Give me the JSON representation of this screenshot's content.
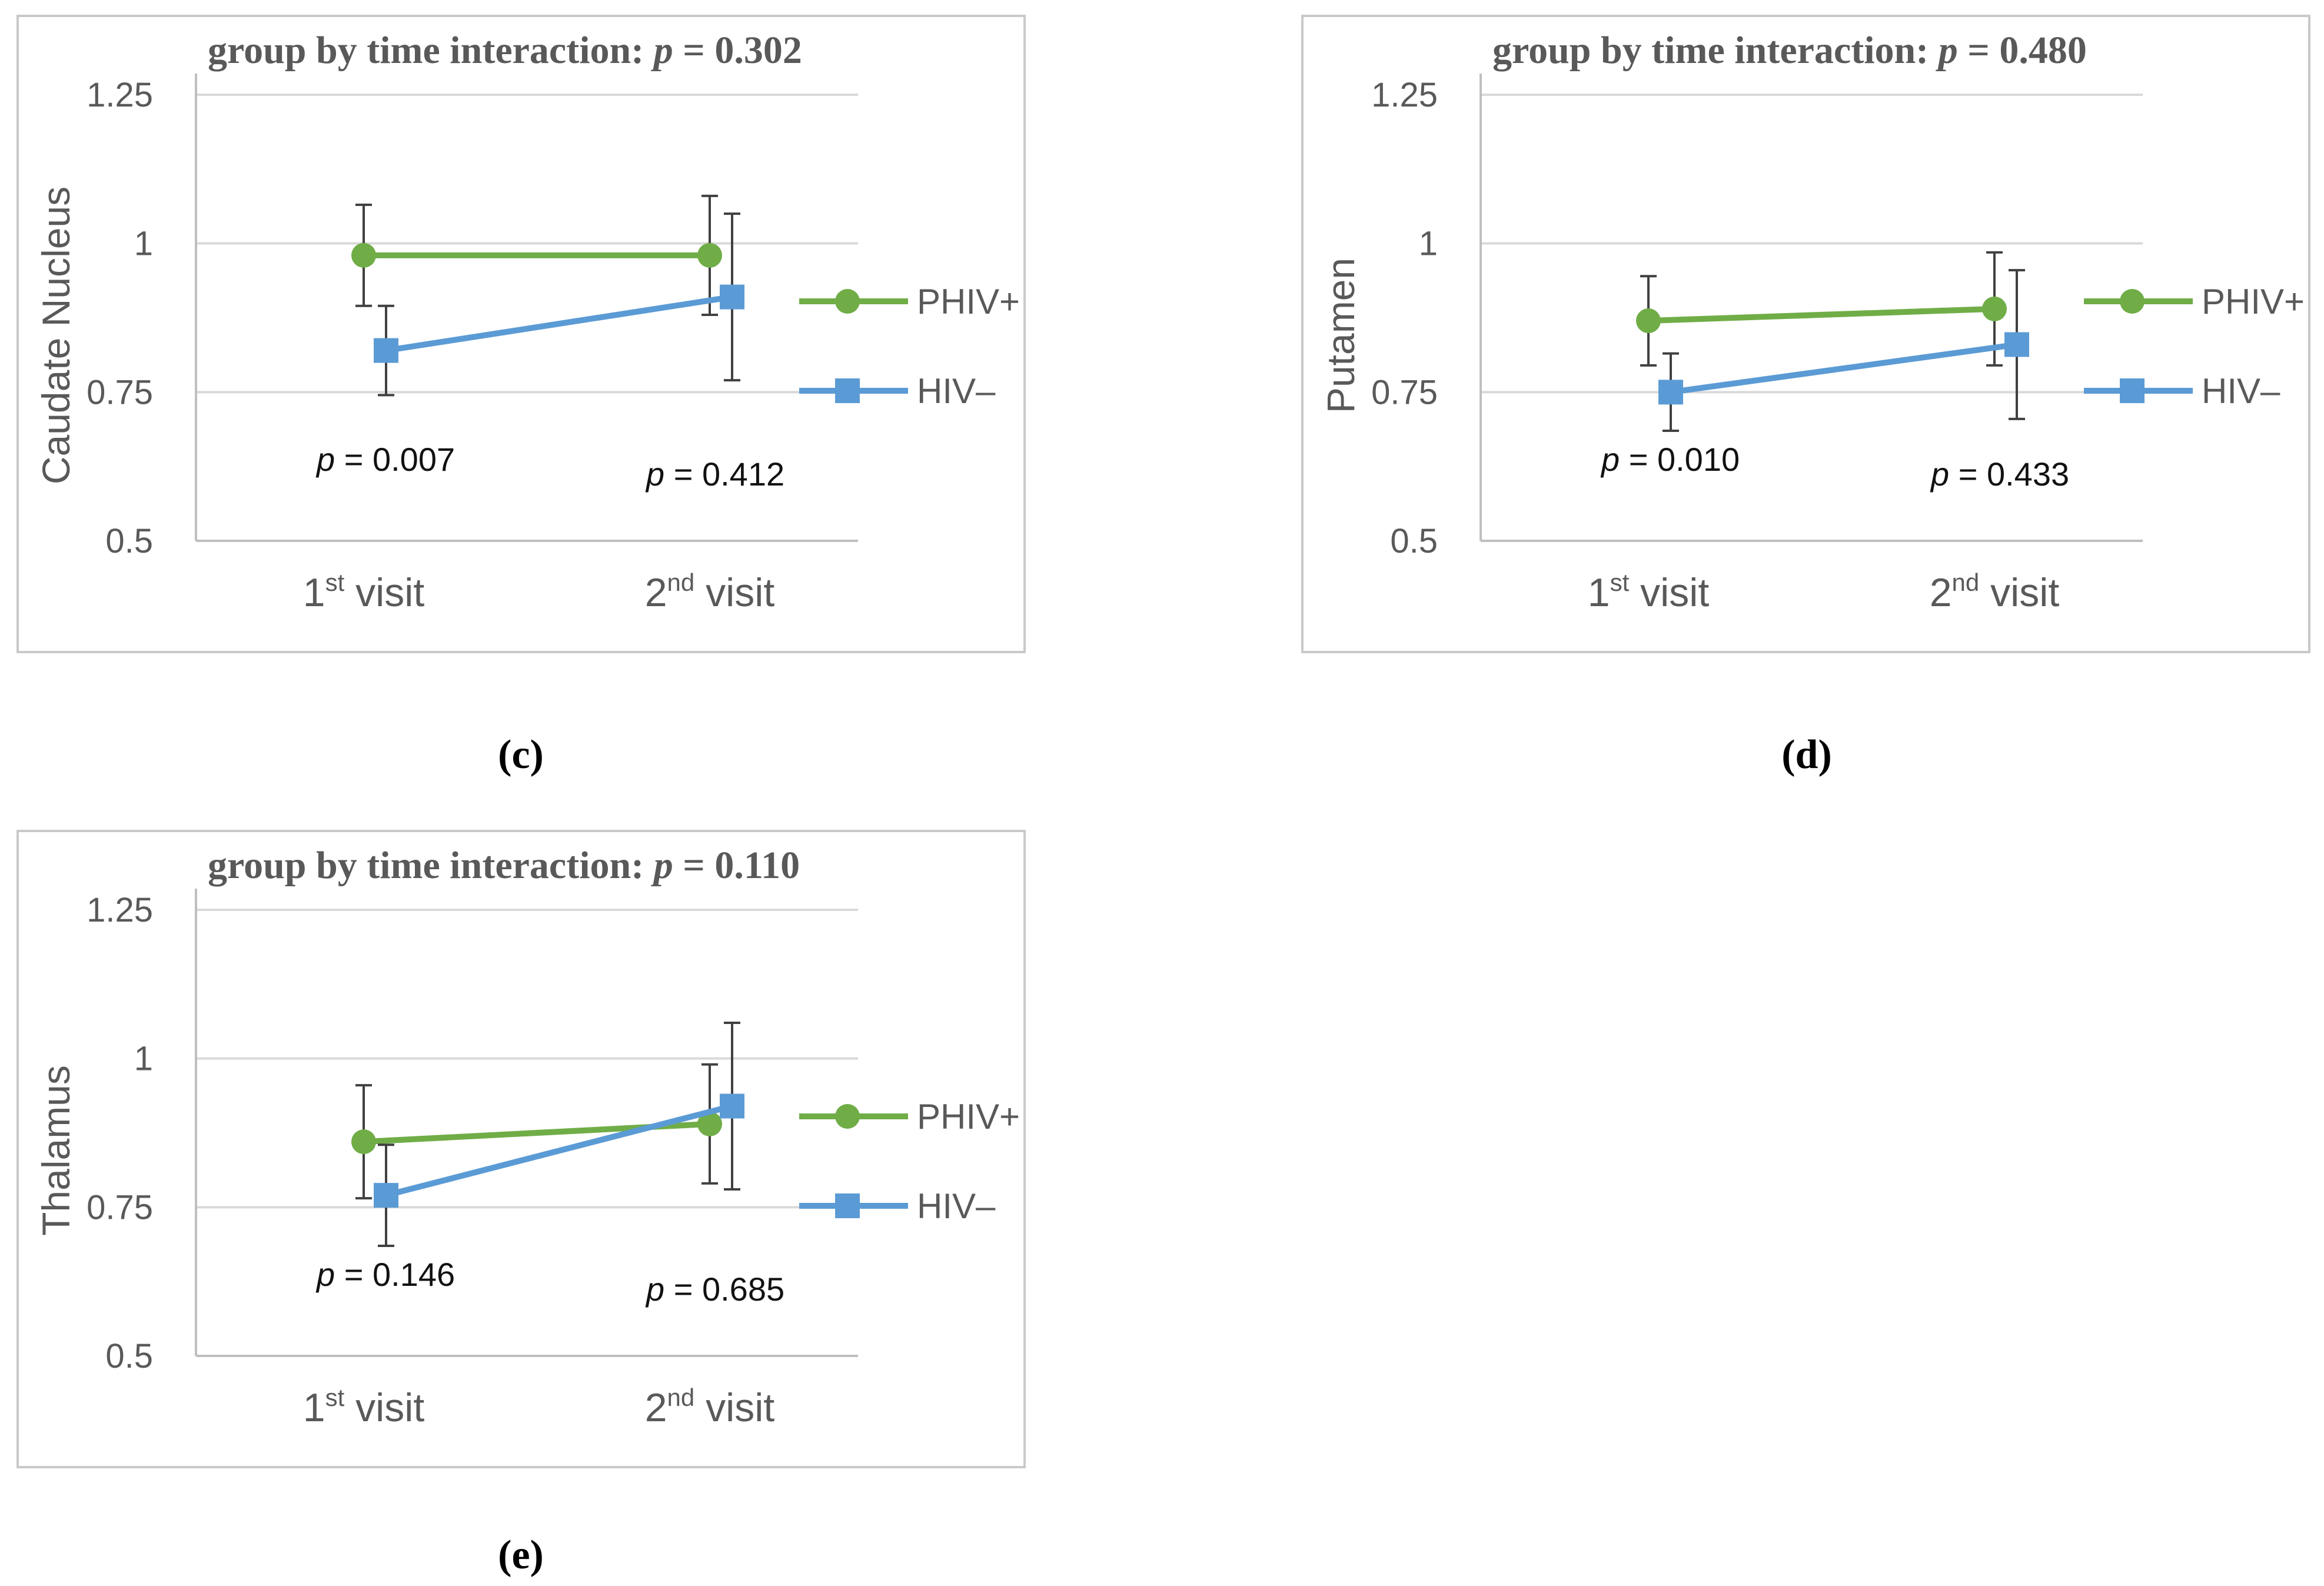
{
  "chart_data": [
    {
      "type": "line",
      "caption": "(c)",
      "title_prefix": "group by time interaction: ",
      "title_p_symbol": "p",
      "title_p_value": " = 0.302",
      "ylabel": "Caudate Nucleus",
      "ylim": [
        0.5,
        1.25
      ],
      "yticks": [
        "0.5",
        "0.75",
        "1",
        "1.25"
      ],
      "categories": [
        {
          "base": "1",
          "sup": "st",
          "rest": " visit"
        },
        {
          "base": "2",
          "sup": "nd",
          "rest": " visit"
        }
      ],
      "series": [
        {
          "name": "PHIV+",
          "color": "#70ad47",
          "marker": "circle",
          "values": [
            0.98,
            0.98
          ],
          "err_low": [
            0.895,
            0.88
          ],
          "err_high": [
            1.065,
            1.08
          ]
        },
        {
          "name": "HIV–",
          "color": "#5b9bd5",
          "marker": "square",
          "values": [
            0.82,
            0.91
          ],
          "err_low": [
            0.745,
            0.77
          ],
          "err_high": [
            0.895,
            1.05
          ]
        }
      ],
      "annotations": [
        {
          "p_symbol": "p",
          "text": " = 0.007"
        },
        {
          "p_symbol": "p",
          "text": " = 0.412"
        }
      ]
    },
    {
      "type": "line",
      "caption": "(d)",
      "title_prefix": "group by time interaction: ",
      "title_p_symbol": "p",
      "title_p_value": " = 0.480",
      "ylabel": "Putamen",
      "ylim": [
        0.5,
        1.25
      ],
      "yticks": [
        "0.5",
        "0.75",
        "1",
        "1.25"
      ],
      "categories": [
        {
          "base": "1",
          "sup": "st",
          "rest": " visit"
        },
        {
          "base": "2",
          "sup": "nd",
          "rest": " visit"
        }
      ],
      "series": [
        {
          "name": "PHIV+",
          "color": "#70ad47",
          "marker": "circle",
          "values": [
            0.87,
            0.89
          ],
          "err_low": [
            0.795,
            0.795
          ],
          "err_high": [
            0.945,
            0.985
          ]
        },
        {
          "name": "HIV–",
          "color": "#5b9bd5",
          "marker": "square",
          "values": [
            0.75,
            0.83
          ],
          "err_low": [
            0.685,
            0.705
          ],
          "err_high": [
            0.815,
            0.955
          ]
        }
      ],
      "annotations": [
        {
          "p_symbol": "p",
          "text": " = 0.010"
        },
        {
          "p_symbol": "p",
          "text": " = 0.433"
        }
      ]
    },
    {
      "type": "line",
      "caption": "(e)",
      "title_prefix": "group by time interaction: ",
      "title_p_symbol": "p",
      "title_p_value": " = 0.110",
      "ylabel": "Thalamus",
      "ylim": [
        0.5,
        1.25
      ],
      "yticks": [
        "0.5",
        "0.75",
        "1",
        "1.25"
      ],
      "categories": [
        {
          "base": "1",
          "sup": "st",
          "rest": " visit"
        },
        {
          "base": "2",
          "sup": "nd",
          "rest": " visit"
        }
      ],
      "series": [
        {
          "name": "PHIV+",
          "color": "#70ad47",
          "marker": "circle",
          "values": [
            0.86,
            0.89
          ],
          "err_low": [
            0.765,
            0.79
          ],
          "err_high": [
            0.955,
            0.99
          ]
        },
        {
          "name": "HIV–",
          "color": "#5b9bd5",
          "marker": "square",
          "values": [
            0.77,
            0.92
          ],
          "err_low": [
            0.685,
            0.78
          ],
          "err_high": [
            0.855,
            1.06
          ]
        }
      ],
      "annotations": [
        {
          "p_symbol": "p",
          "text": " = 0.146"
        },
        {
          "p_symbol": "p",
          "text": " = 0.685"
        }
      ]
    }
  ]
}
